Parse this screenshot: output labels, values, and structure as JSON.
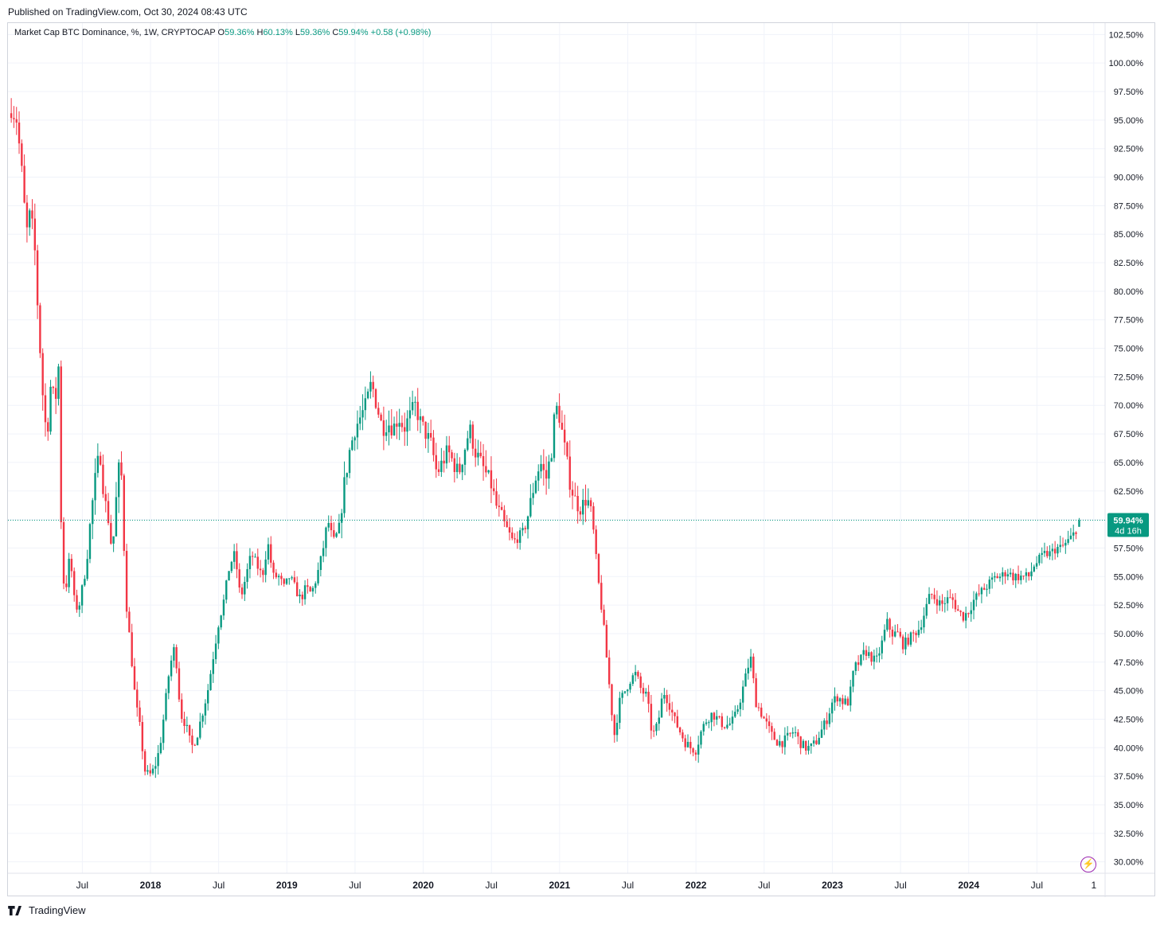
{
  "header": {
    "published": "Published on TradingView.com, Oct 30, 2024 08:43 UTC"
  },
  "legend": {
    "symbol": "Market Cap BTC Dominance, %, 1W, CRYPTOCAP",
    "open_label": "O",
    "open": "59.36%",
    "high_label": "H",
    "high": "60.13%",
    "low_label": "L",
    "low": "59.36%",
    "close_label": "C",
    "close": "59.94%",
    "change": "+0.58 (+0.98%)"
  },
  "price_label": {
    "value": "59.94%",
    "countdown": "4d 16h"
  },
  "footer": {
    "brand": "TradingView"
  },
  "colors": {
    "up": "#089981",
    "down": "#f23645",
    "grid": "#f0f3fa",
    "text": "#131722",
    "price_line": "#089981"
  },
  "chart_data": {
    "type": "candlestick",
    "title": "Market Cap BTC Dominance, %, 1W, CRYPTOCAP",
    "y_unit": "%",
    "ylim": [
      29.0,
      103.5
    ],
    "y_ticks": [
      "30.00%",
      "32.50%",
      "35.00%",
      "37.50%",
      "40.00%",
      "42.50%",
      "45.00%",
      "47.50%",
      "50.00%",
      "52.50%",
      "55.00%",
      "57.50%",
      "60.00%",
      "62.50%",
      "65.00%",
      "67.50%",
      "70.00%",
      "72.50%",
      "75.00%",
      "77.50%",
      "80.00%",
      "82.50%",
      "85.00%",
      "87.50%",
      "90.00%",
      "92.50%",
      "95.00%",
      "97.50%",
      "100.00%",
      "102.50%"
    ],
    "x_ticks": [
      {
        "label": "Jul",
        "t": 2017.5
      },
      {
        "label": "2018",
        "t": 2018.0
      },
      {
        "label": "Jul",
        "t": 2018.5
      },
      {
        "label": "2019",
        "t": 2019.0
      },
      {
        "label": "Jul",
        "t": 2019.5
      },
      {
        "label": "2020",
        "t": 2020.0
      },
      {
        "label": "Jul",
        "t": 2020.5
      },
      {
        "label": "2021",
        "t": 2021.0
      },
      {
        "label": "Jul",
        "t": 2021.5
      },
      {
        "label": "2022",
        "t": 2022.0
      },
      {
        "label": "Jul",
        "t": 2022.5
      },
      {
        "label": "2023",
        "t": 2023.0
      },
      {
        "label": "Jul",
        "t": 2023.5
      },
      {
        "label": "2024",
        "t": 2024.0
      },
      {
        "label": "Jul",
        "t": 2024.5
      },
      {
        "label": "1",
        "t": 2024.917
      }
    ],
    "xlim": [
      2016.955,
      2025.0
    ],
    "last_price": 59.94,
    "path_knots": [
      [
        2016.96,
        95.6
      ],
      [
        2016.98,
        96.0
      ],
      [
        2017.02,
        95.0
      ],
      [
        2017.06,
        90.0
      ],
      [
        2017.09,
        85.0
      ],
      [
        2017.12,
        87.0
      ],
      [
        2017.15,
        84.0
      ],
      [
        2017.18,
        77.0
      ],
      [
        2017.21,
        71.0
      ],
      [
        2017.24,
        67.0
      ],
      [
        2017.27,
        72.0
      ],
      [
        2017.3,
        70.0
      ],
      [
        2017.33,
        74.0
      ],
      [
        2017.35,
        55.0
      ],
      [
        2017.38,
        54.0
      ],
      [
        2017.41,
        57.0
      ],
      [
        2017.44,
        53.0
      ],
      [
        2017.47,
        52.0
      ],
      [
        2017.5,
        54.0
      ],
      [
        2017.53,
        56.0
      ],
      [
        2017.56,
        60.0
      ],
      [
        2017.6,
        64.0
      ],
      [
        2017.63,
        66.0
      ],
      [
        2017.66,
        62.0
      ],
      [
        2017.69,
        60.0
      ],
      [
        2017.72,
        57.0
      ],
      [
        2017.75,
        62.0
      ],
      [
        2017.78,
        66.0
      ],
      [
        2017.82,
        53.0
      ],
      [
        2017.86,
        48.0
      ],
      [
        2017.89,
        44.0
      ],
      [
        2017.92,
        42.0
      ],
      [
        2017.96,
        38.0
      ],
      [
        2017.99,
        37.5
      ],
      [
        2018.02,
        38.0
      ],
      [
        2018.05,
        39.0
      ],
      [
        2018.08,
        41.0
      ],
      [
        2018.11,
        44.0
      ],
      [
        2018.14,
        47.0
      ],
      [
        2018.18,
        49.0
      ],
      [
        2018.22,
        43.0
      ],
      [
        2018.26,
        42.0
      ],
      [
        2018.3,
        40.0
      ],
      [
        2018.34,
        41.0
      ],
      [
        2018.38,
        43.0
      ],
      [
        2018.42,
        45.0
      ],
      [
        2018.46,
        48.0
      ],
      [
        2018.5,
        51.0
      ],
      [
        2018.54,
        53.0
      ],
      [
        2018.58,
        56.0
      ],
      [
        2018.62,
        57.0
      ],
      [
        2018.66,
        53.0
      ],
      [
        2018.7,
        55.0
      ],
      [
        2018.74,
        57.0
      ],
      [
        2018.78,
        56.0
      ],
      [
        2018.82,
        55.0
      ],
      [
        2018.86,
        58.0
      ],
      [
        2018.9,
        55.0
      ],
      [
        2018.94,
        55.0
      ],
      [
        2018.98,
        54.0
      ],
      [
        2019.02,
        55.0
      ],
      [
        2019.06,
        54.0
      ],
      [
        2019.1,
        53.0
      ],
      [
        2019.14,
        54.0
      ],
      [
        2019.18,
        53.5
      ],
      [
        2019.22,
        55.0
      ],
      [
        2019.26,
        57.0
      ],
      [
        2019.3,
        60.0
      ],
      [
        2019.34,
        58.0
      ],
      [
        2019.38,
        59.0
      ],
      [
        2019.42,
        63.0
      ],
      [
        2019.46,
        66.0
      ],
      [
        2019.5,
        68.0
      ],
      [
        2019.54,
        69.0
      ],
      [
        2019.58,
        70.0
      ],
      [
        2019.62,
        72.0
      ],
      [
        2019.66,
        70.0
      ],
      [
        2019.7,
        68.0
      ],
      [
        2019.74,
        68.5
      ],
      [
        2019.78,
        68.0
      ],
      [
        2019.82,
        69.0
      ],
      [
        2019.86,
        68.0
      ],
      [
        2019.9,
        69.0
      ],
      [
        2019.94,
        70.0
      ],
      [
        2019.98,
        68.5
      ],
      [
        2020.02,
        67.5
      ],
      [
        2020.06,
        66.5
      ],
      [
        2020.1,
        64.0
      ],
      [
        2020.14,
        65.0
      ],
      [
        2020.18,
        66.0
      ],
      [
        2020.22,
        65.0
      ],
      [
        2020.26,
        64.0
      ],
      [
        2020.3,
        66.0
      ],
      [
        2020.34,
        68.0
      ],
      [
        2020.38,
        66.0
      ],
      [
        2020.42,
        65.0
      ],
      [
        2020.46,
        64.0
      ],
      [
        2020.5,
        63.0
      ],
      [
        2020.54,
        61.0
      ],
      [
        2020.58,
        60.0
      ],
      [
        2020.62,
        59.0
      ],
      [
        2020.66,
        58.0
      ],
      [
        2020.7,
        58.5
      ],
      [
        2020.74,
        59.0
      ],
      [
        2020.78,
        61.0
      ],
      [
        2020.82,
        63.5
      ],
      [
        2020.86,
        65.0
      ],
      [
        2020.9,
        63.5
      ],
      [
        2020.94,
        66.0
      ],
      [
        2020.97,
        70.0
      ],
      [
        2021.0,
        69.0
      ],
      [
        2021.04,
        66.0
      ],
      [
        2021.08,
        63.0
      ],
      [
        2021.12,
        61.5
      ],
      [
        2021.16,
        61.0
      ],
      [
        2021.2,
        62.0
      ],
      [
        2021.24,
        60.0
      ],
      [
        2021.28,
        55.0
      ],
      [
        2021.32,
        51.0
      ],
      [
        2021.36,
        46.0
      ],
      [
        2021.4,
        41.0
      ],
      [
        2021.44,
        44.0
      ],
      [
        2021.48,
        45.0
      ],
      [
        2021.52,
        46.0
      ],
      [
        2021.56,
        46.5
      ],
      [
        2021.6,
        45.0
      ],
      [
        2021.64,
        44.5
      ],
      [
        2021.68,
        41.0
      ],
      [
        2021.72,
        42.0
      ],
      [
        2021.76,
        45.0
      ],
      [
        2021.8,
        44.0
      ],
      [
        2021.84,
        42.5
      ],
      [
        2021.88,
        41.5
      ],
      [
        2021.92,
        40.5
      ],
      [
        2021.96,
        40.0
      ],
      [
        2022.0,
        39.8
      ],
      [
        2022.04,
        41.5
      ],
      [
        2022.08,
        42.5
      ],
      [
        2022.12,
        43.0
      ],
      [
        2022.16,
        42.5
      ],
      [
        2022.2,
        42.0
      ],
      [
        2022.24,
        42.0
      ],
      [
        2022.28,
        42.5
      ],
      [
        2022.32,
        44.0
      ],
      [
        2022.36,
        46.0
      ],
      [
        2022.4,
        48.0
      ],
      [
        2022.44,
        44.0
      ],
      [
        2022.48,
        43.0
      ],
      [
        2022.52,
        42.0
      ],
      [
        2022.56,
        41.0
      ],
      [
        2022.6,
        40.5
      ],
      [
        2022.64,
        40.5
      ],
      [
        2022.68,
        41.0
      ],
      [
        2022.72,
        41.5
      ],
      [
        2022.76,
        40.5
      ],
      [
        2022.8,
        40.0
      ],
      [
        2022.84,
        40.0
      ],
      [
        2022.88,
        40.5
      ],
      [
        2022.92,
        41.5
      ],
      [
        2022.96,
        42.5
      ],
      [
        2023.0,
        44.0
      ],
      [
        2023.04,
        44.5
      ],
      [
        2023.08,
        44.0
      ],
      [
        2023.12,
        44.0
      ],
      [
        2023.16,
        47.0
      ],
      [
        2023.2,
        47.5
      ],
      [
        2023.24,
        48.5
      ],
      [
        2023.28,
        48.0
      ],
      [
        2023.32,
        47.5
      ],
      [
        2023.36,
        49.0
      ],
      [
        2023.4,
        51.0
      ],
      [
        2023.44,
        50.0
      ],
      [
        2023.48,
        50.0
      ],
      [
        2023.52,
        49.0
      ],
      [
        2023.56,
        49.5
      ],
      [
        2023.6,
        50.0
      ],
      [
        2023.64,
        50.5
      ],
      [
        2023.68,
        52.0
      ],
      [
        2023.72,
        53.5
      ],
      [
        2023.76,
        53.0
      ],
      [
        2023.8,
        52.5
      ],
      [
        2023.84,
        53.0
      ],
      [
        2023.88,
        53.0
      ],
      [
        2023.92,
        52.0
      ],
      [
        2023.96,
        51.5
      ],
      [
        2024.0,
        52.0
      ],
      [
        2024.04,
        53.0
      ],
      [
        2024.08,
        53.5
      ],
      [
        2024.12,
        54.0
      ],
      [
        2024.16,
        54.5
      ],
      [
        2024.2,
        55.0
      ],
      [
        2024.24,
        55.0
      ],
      [
        2024.28,
        55.5
      ],
      [
        2024.32,
        55.0
      ],
      [
        2024.36,
        55.0
      ],
      [
        2024.4,
        55.0
      ],
      [
        2024.44,
        55.0
      ],
      [
        2024.48,
        56.0
      ],
      [
        2024.52,
        56.5
      ],
      [
        2024.56,
        57.0
      ],
      [
        2024.6,
        57.0
      ],
      [
        2024.64,
        57.5
      ],
      [
        2024.68,
        57.5
      ],
      [
        2024.72,
        58.0
      ],
      [
        2024.76,
        58.5
      ],
      [
        2024.795,
        59.36
      ],
      [
        2024.81,
        59.94
      ]
    ],
    "last_candle": {
      "o": 59.36,
      "h": 60.13,
      "l": 59.36,
      "c": 59.94
    }
  }
}
